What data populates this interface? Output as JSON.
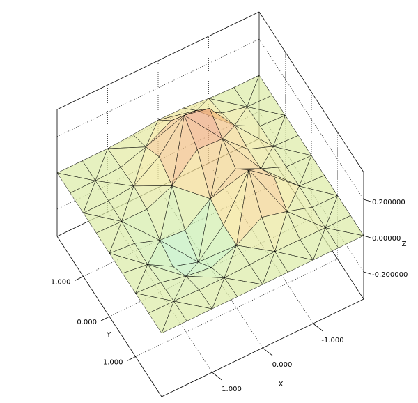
{
  "chart_data": {
    "type": "surface",
    "x": [
      -2,
      -1.5,
      -1,
      -0.5,
      0,
      0.5,
      1,
      1.5,
      2
    ],
    "y": [
      -2,
      -1.5,
      -1,
      -0.5,
      0,
      0.5,
      1,
      1.5,
      2
    ],
    "z": [
      [
        0,
        0,
        0.007,
        0.021,
        0.023,
        0.009,
        0,
        0,
        0
      ],
      [
        0,
        0.004,
        0.037,
        0.118,
        0.13,
        0.052,
        0.007,
        0,
        0
      ],
      [
        0,
        0.009,
        0.079,
        0.24,
        0.27,
        0.109,
        0.014,
        0,
        0
      ],
      [
        0,
        0.007,
        0.059,
        0.183,
        0.193,
        0.059,
        -0.003,
        -0.003,
        0
      ],
      [
        0,
        0.005,
        0.062,
        0.128,
        0.031,
        -0.076,
        -0.064,
        -0.014,
        -0.001
      ],
      [
        0,
        0.009,
        0.128,
        0.233,
        -0.004,
        -0.141,
        -0.098,
        -0.02,
        -0.001
      ],
      [
        0,
        0.003,
        0.047,
        0.082,
        -0.005,
        -0.06,
        -0.041,
        -0.008,
        0
      ],
      [
        0,
        0,
        0.002,
        0.004,
        -0.002,
        -0.007,
        -0.005,
        -0.001,
        0
      ],
      [
        0,
        0,
        0,
        0,
        0,
        0,
        0,
        0,
        0
      ]
    ],
    "xlim": [
      -2,
      2
    ],
    "ylim": [
      -2,
      2
    ],
    "zlim": [
      -0.35,
      0.35
    ],
    "xticks": [
      {
        "value": -1,
        "label": "-1.000"
      },
      {
        "value": 0,
        "label": "0.000"
      },
      {
        "value": 1,
        "label": "1.000"
      }
    ],
    "yticks": [
      {
        "value": -1,
        "label": "-1.000"
      },
      {
        "value": 0,
        "label": "0.000"
      },
      {
        "value": 1,
        "label": "1.000"
      }
    ],
    "zticks": [
      {
        "value": -0.2,
        "label": "-0.200000"
      },
      {
        "value": 0,
        "label": "0.00000"
      },
      {
        "value": 0.2,
        "label": "0.200000"
      }
    ],
    "xlabel": "X",
    "ylabel": "Y",
    "zlabel": "Z",
    "grid": true,
    "colormap": [
      "#7cc4ff",
      "#a8e6f0",
      "#c8f0b4",
      "#f2e69a",
      "#f0b482",
      "#d2706e"
    ]
  }
}
